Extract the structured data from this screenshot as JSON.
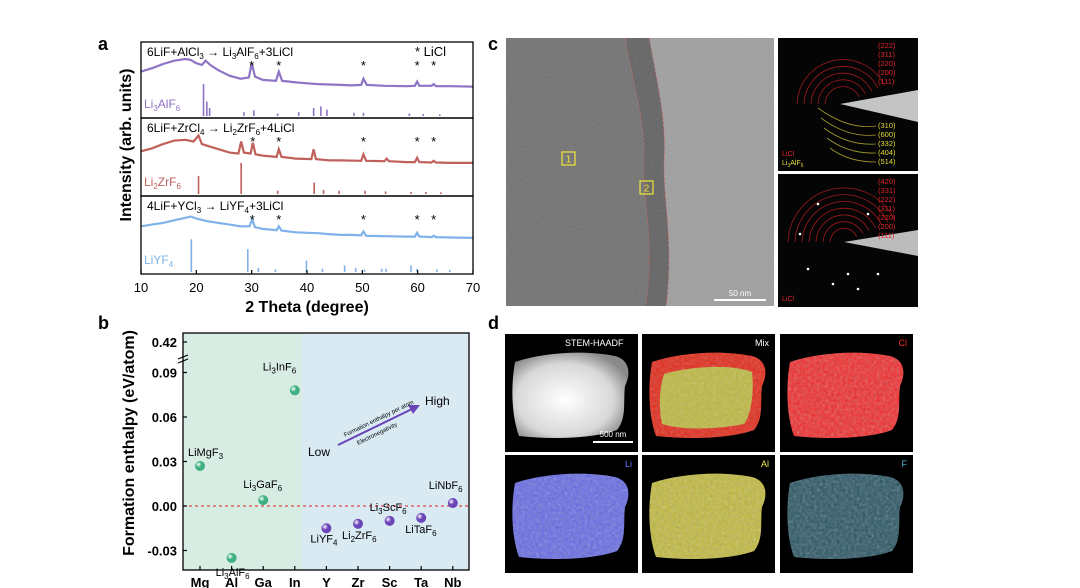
{
  "panel_labels": {
    "a": "a",
    "b": "b",
    "c": "c",
    "d": "d"
  },
  "colors": {
    "purple": "#8e74c4",
    "red": "#c0605b",
    "blue": "#7fb2ea",
    "green_bg": "#d7ece3",
    "blue_bg": "#d9eaf3",
    "green_pt": "#3fb07f",
    "purple_pt": "#6b45b8",
    "sad_red": "#e0242a",
    "sad_yellow": "#e3dc3a"
  },
  "chart_data": [
    {
      "type": "line",
      "panel": "a",
      "xlabel": "2 Theta (degree)",
      "ylabel": "Intensity (arb. units)",
      "xlim": [
        10,
        70
      ],
      "xticks": [
        10,
        20,
        30,
        40,
        50,
        60,
        70
      ],
      "legend_marker": "*",
      "legend_label": "LiCl",
      "subpanels": [
        {
          "reaction": "6LiF+AlCl3 → Li3AlF6+3LiCl",
          "reaction_parts": {
            "pre": "6LiF+AlCl",
            "s1": "3",
            "mid": " → Li",
            "s2": "3",
            "post": "AlF",
            "s3": "6",
            "end": "+3LiCl"
          },
          "ref_phase": "Li3AlF6",
          "ref_parts": {
            "a": "Li",
            "s1": "3",
            "b": "AlF",
            "s2": "6"
          },
          "color": "#8e74c4",
          "pattern": [
            [
              10,
              0.42
            ],
            [
              12,
              0.5
            ],
            [
              14,
              0.6
            ],
            [
              16,
              0.68
            ],
            [
              18,
              0.72
            ],
            [
              19,
              0.7
            ],
            [
              20,
              0.62
            ],
            [
              21,
              0.58
            ],
            [
              21.7,
              0.68
            ],
            [
              22.5,
              0.58
            ],
            [
              24,
              0.45
            ],
            [
              26,
              0.32
            ],
            [
              28,
              0.25
            ],
            [
              29.5,
              0.28
            ],
            [
              30,
              0.62
            ],
            [
              30.6,
              0.3
            ],
            [
              32,
              0.22
            ],
            [
              34.4,
              0.2
            ],
            [
              34.9,
              0.42
            ],
            [
              35.5,
              0.2
            ],
            [
              38,
              0.16
            ],
            [
              40,
              0.14
            ],
            [
              42,
              0.12
            ],
            [
              44,
              0.11
            ],
            [
              46,
              0.1
            ],
            [
              48,
              0.09
            ],
            [
              49.8,
              0.1
            ],
            [
              50.2,
              0.25
            ],
            [
              50.8,
              0.1
            ],
            [
              54,
              0.08
            ],
            [
              58,
              0.07
            ],
            [
              59.5,
              0.08
            ],
            [
              59.9,
              0.18
            ],
            [
              60.3,
              0.08
            ],
            [
              62.5,
              0.08
            ],
            [
              62.9,
              0.12
            ],
            [
              63.3,
              0.07
            ],
            [
              66,
              0.07
            ],
            [
              70,
              0.06
            ]
          ],
          "peaks": [
            30.0,
            34.9,
            50.2,
            59.9,
            62.9
          ],
          "reference_lines": [
            [
              21.3,
              1.0
            ],
            [
              21.9,
              0.45
            ],
            [
              22.4,
              0.25
            ],
            [
              28.6,
              0.12
            ],
            [
              30.4,
              0.18
            ],
            [
              34.7,
              0.08
            ],
            [
              38.5,
              0.12
            ],
            [
              41.2,
              0.25
            ],
            [
              42.5,
              0.3
            ],
            [
              43.6,
              0.2
            ],
            [
              48.5,
              0.1
            ],
            [
              50.2,
              0.1
            ],
            [
              58.5,
              0.08
            ],
            [
              61,
              0.06
            ],
            [
              64,
              0.05
            ]
          ]
        },
        {
          "reaction": "6LiF+ZrCl4 → Li2ZrF6+4LiCl",
          "reaction_parts": {
            "pre": "6LiF+ZrCl",
            "s1": "4",
            "mid": " → Li",
            "s2": "2",
            "post": "ZrF",
            "s3": "6",
            "end": "+4LiCl"
          },
          "ref_phase": "Li2ZrF6",
          "ref_parts": {
            "a": "Li",
            "s1": "2",
            "b": "ZrF",
            "s2": "6"
          },
          "color": "#c0605b",
          "pattern": [
            [
              10,
              0.35
            ],
            [
              12,
              0.42
            ],
            [
              14,
              0.52
            ],
            [
              16,
              0.6
            ],
            [
              18,
              0.62
            ],
            [
              19.5,
              0.58
            ],
            [
              20.4,
              0.72
            ],
            [
              21,
              0.52
            ],
            [
              22,
              0.48
            ],
            [
              24,
              0.4
            ],
            [
              26,
              0.32
            ],
            [
              27.6,
              0.3
            ],
            [
              28.1,
              0.58
            ],
            [
              28.6,
              0.32
            ],
            [
              29.8,
              0.3
            ],
            [
              30.2,
              0.55
            ],
            [
              30.7,
              0.28
            ],
            [
              32,
              0.25
            ],
            [
              34.5,
              0.22
            ],
            [
              34.9,
              0.4
            ],
            [
              35.4,
              0.22
            ],
            [
              38,
              0.18
            ],
            [
              40.8,
              0.17
            ],
            [
              41.2,
              0.4
            ],
            [
              41.6,
              0.17
            ],
            [
              44,
              0.14
            ],
            [
              46,
              0.14
            ],
            [
              49.8,
              0.13
            ],
            [
              50.2,
              0.28
            ],
            [
              50.7,
              0.13
            ],
            [
              54,
              0.12
            ],
            [
              54.4,
              0.18
            ],
            [
              54.8,
              0.12
            ],
            [
              58,
              0.1
            ],
            [
              59.5,
              0.1
            ],
            [
              59.9,
              0.2
            ],
            [
              60.3,
              0.1
            ],
            [
              62.5,
              0.09
            ],
            [
              62.9,
              0.13
            ],
            [
              63.3,
              0.09
            ],
            [
              66,
              0.08
            ],
            [
              70,
              0.08
            ]
          ],
          "peaks": [
            30.2,
            34.9,
            50.2,
            59.9,
            62.9
          ],
          "reference_lines": [
            [
              20.4,
              0.55
            ],
            [
              28.1,
              0.95
            ],
            [
              34.7,
              0.1
            ],
            [
              41.3,
              0.35
            ],
            [
              43,
              0.12
            ],
            [
              45.8,
              0.1
            ],
            [
              50.5,
              0.1
            ],
            [
              54.2,
              0.08
            ],
            [
              58.8,
              0.06
            ],
            [
              61.5,
              0.06
            ],
            [
              64.2,
              0.05
            ]
          ]
        },
        {
          "reaction": "4LiF+YCl3 → LiYF4+3LiCl",
          "reaction_parts": {
            "pre": "4LiF+YCl",
            "s1": "3",
            "mid": " → LiYF",
            "s2": "4",
            "post": "",
            "s3": "",
            "end": "+3LiCl"
          },
          "ref_phase": "LiYF4",
          "ref_parts": {
            "a": "LiYF",
            "s1": "4",
            "b": "",
            "s2": ""
          },
          "color": "#7fb2ea",
          "pattern": [
            [
              10,
              0.42
            ],
            [
              12,
              0.46
            ],
            [
              14,
              0.5
            ],
            [
              16,
              0.56
            ],
            [
              18,
              0.62
            ],
            [
              19,
              0.65
            ],
            [
              20,
              0.6
            ],
            [
              22,
              0.54
            ],
            [
              24,
              0.5
            ],
            [
              26,
              0.46
            ],
            [
              28,
              0.42
            ],
            [
              29.6,
              0.42
            ],
            [
              30.1,
              0.58
            ],
            [
              30.6,
              0.4
            ],
            [
              32,
              0.36
            ],
            [
              34.5,
              0.33
            ],
            [
              34.9,
              0.42
            ],
            [
              35.4,
              0.32
            ],
            [
              38,
              0.28
            ],
            [
              40,
              0.27
            ],
            [
              42,
              0.26
            ],
            [
              44,
              0.24
            ],
            [
              46,
              0.22
            ],
            [
              48,
              0.22
            ],
            [
              49.8,
              0.21
            ],
            [
              50.2,
              0.3
            ],
            [
              50.7,
              0.2
            ],
            [
              54,
              0.19
            ],
            [
              58,
              0.18
            ],
            [
              59.5,
              0.18
            ],
            [
              59.9,
              0.27
            ],
            [
              60.3,
              0.18
            ],
            [
              62.5,
              0.17
            ],
            [
              62.9,
              0.2
            ],
            [
              63.3,
              0.17
            ],
            [
              66,
              0.16
            ],
            [
              70,
              0.15
            ]
          ],
          "peaks": [
            30.1,
            34.9,
            50.2,
            59.9,
            62.9
          ],
          "reference_lines": [
            [
              19.1,
              1.0
            ],
            [
              29.3,
              0.7
            ],
            [
              31.2,
              0.12
            ],
            [
              34.3,
              0.08
            ],
            [
              39.9,
              0.35
            ],
            [
              42.8,
              0.1
            ],
            [
              46.8,
              0.2
            ],
            [
              48.8,
              0.12
            ],
            [
              50.4,
              0.08
            ],
            [
              53.5,
              0.1
            ],
            [
              54.3,
              0.1
            ],
            [
              58.8,
              0.2
            ],
            [
              59.9,
              0.1
            ],
            [
              63.5,
              0.08
            ],
            [
              65.8,
              0.06
            ]
          ]
        }
      ]
    },
    {
      "type": "scatter",
      "panel": "b",
      "ylabel": "Formation enthalpy (eV/atom)",
      "categories": [
        "Mg",
        "Al",
        "Ga",
        "In",
        "Y",
        "Zr",
        "Sc",
        "Ta",
        "Nb"
      ],
      "yticks": [
        -0.03,
        0.0,
        0.03,
        0.06,
        0.09,
        0.42
      ],
      "ytick_labels": [
        "-0.03",
        "0.00",
        "0.03",
        "0.06",
        "0.09",
        "0.42"
      ],
      "y_break": "between 0.09 and 0.42",
      "zero_line": "dashed red",
      "annotation": {
        "low": "Low",
        "high": "High",
        "arrow_line1": "Formation enthalpy per atom",
        "arrow_line2": "Electronegativity"
      },
      "points": [
        {
          "cat": "Mg",
          "y": 0.027,
          "group": "green",
          "label_parts": {
            "a": "LiMgF",
            "s1": "3",
            "b": "",
            "s2": ""
          }
        },
        {
          "cat": "Al",
          "y": -0.035,
          "group": "green",
          "label_parts": {
            "a": "Li",
            "s1": "3",
            "b": "AlF",
            "s2": "6"
          }
        },
        {
          "cat": "Ga",
          "y": 0.004,
          "group": "green",
          "label_parts": {
            "a": "Li",
            "s1": "3",
            "b": "GaF",
            "s2": "6"
          }
        },
        {
          "cat": "In",
          "y": 0.078,
          "group": "green",
          "label_parts": {
            "a": "Li",
            "s1": "3",
            "b": "InF",
            "s2": "6"
          }
        },
        {
          "cat": "Y",
          "y": -0.015,
          "group": "purple",
          "label_parts": {
            "a": "LiYF",
            "s1": "4",
            "b": "",
            "s2": ""
          }
        },
        {
          "cat": "Zr",
          "y": -0.012,
          "group": "purple",
          "label_parts": {
            "a": "Li",
            "s1": "2",
            "b": "ZrF",
            "s2": "6"
          }
        },
        {
          "cat": "Sc",
          "y": -0.01,
          "group": "purple",
          "label_parts": {
            "a": "Li",
            "s1": "3",
            "b": "ScF",
            "s2": "6"
          }
        },
        {
          "cat": "Ta",
          "y": -0.008,
          "group": "purple",
          "label_parts": {
            "a": "LiTaF",
            "s1": "6",
            "b": "",
            "s2": ""
          }
        },
        {
          "cat": "Nb",
          "y": 0.002,
          "group": "purple",
          "label_parts": {
            "a": "LiNbF",
            "s1": "6",
            "b": "",
            "s2": ""
          }
        }
      ]
    }
  ],
  "panel_c": {
    "scale_bar": "50 nm",
    "box1": "1",
    "box2": "2",
    "saed_top": {
      "red_rings": [
        "(222)",
        "(311)",
        "(220)",
        "(200)",
        "(111)"
      ],
      "yellow_rings": [
        "(310)",
        "(600)",
        "(332)",
        "(404)",
        "(514)"
      ],
      "legend_red": "LiCl",
      "legend_yellow_parts": {
        "a": "Li",
        "s1": "3",
        "b": "AlF",
        "s2": "6"
      }
    },
    "saed_bottom": {
      "red_rings": [
        "(420)",
        "(331)",
        "(222)",
        "(311)",
        "(220)",
        "(200)",
        "(111)"
      ],
      "legend_red": "LiCl"
    }
  },
  "panel_d": {
    "scale_bar": "500 nm",
    "maps": [
      {
        "label": "STEM-HAADF",
        "color": "#ffffff"
      },
      {
        "label": "Mix",
        "color": "#ffffff"
      },
      {
        "label": "Cl",
        "color": "#ff2a2a"
      },
      {
        "label": "Li",
        "color": "#6f73ff"
      },
      {
        "label": "Al",
        "color": "#f2e84a"
      },
      {
        "label": "F",
        "color": "#4fb6d6"
      }
    ]
  }
}
